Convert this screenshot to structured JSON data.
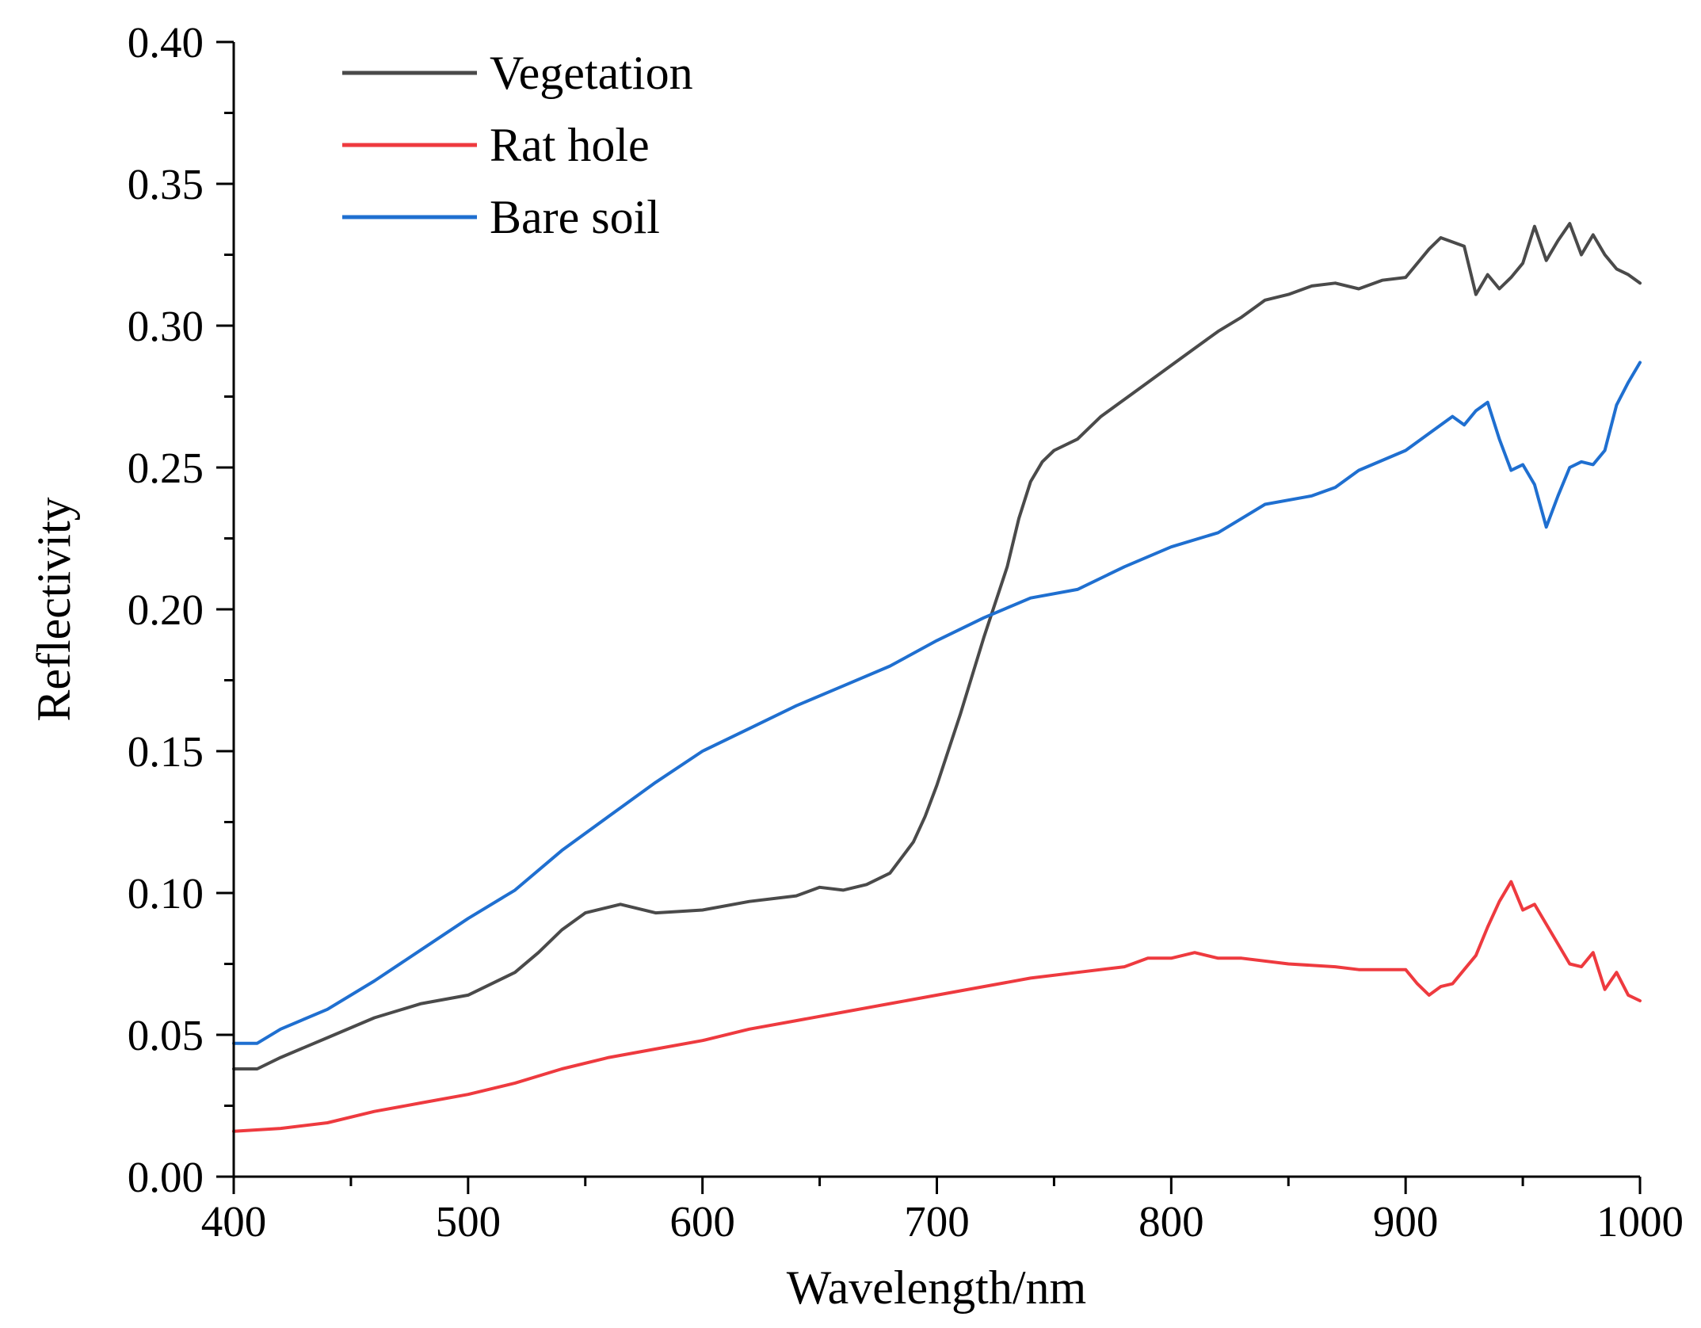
{
  "chart_data": {
    "type": "line",
    "title": "",
    "xlabel": "Wavelength/nm",
    "ylabel": "Reflectivity",
    "xlim": [
      400,
      1000
    ],
    "ylim": [
      0,
      0.4
    ],
    "x_ticks": [
      "400",
      "500",
      "600",
      "700",
      "800",
      "900",
      "1000"
    ],
    "y_ticks": [
      "0.00",
      "0.05",
      "0.10",
      "0.15",
      "0.20",
      "0.25",
      "0.30",
      "0.35",
      "0.40"
    ],
    "grid": false,
    "legend_position": "top-left",
    "series": [
      {
        "name": "Vegetation",
        "color": "#4a4a4a",
        "x": [
          400,
          410,
          420,
          440,
          460,
          480,
          500,
          520,
          530,
          540,
          550,
          565,
          580,
          600,
          620,
          640,
          650,
          660,
          670,
          680,
          690,
          695,
          700,
          710,
          720,
          730,
          735,
          740,
          745,
          750,
          760,
          770,
          780,
          790,
          800,
          810,
          820,
          830,
          840,
          850,
          860,
          870,
          880,
          890,
          900,
          910,
          915,
          925,
          930,
          935,
          940,
          945,
          950,
          955,
          960,
          965,
          970,
          975,
          980,
          985,
          990,
          995,
          1000
        ],
        "y": [
          0.038,
          0.038,
          0.042,
          0.049,
          0.056,
          0.061,
          0.064,
          0.072,
          0.079,
          0.087,
          0.093,
          0.096,
          0.093,
          0.094,
          0.097,
          0.099,
          0.102,
          0.101,
          0.103,
          0.107,
          0.118,
          0.127,
          0.138,
          0.163,
          0.19,
          0.215,
          0.232,
          0.245,
          0.252,
          0.256,
          0.26,
          0.268,
          0.274,
          0.28,
          0.286,
          0.292,
          0.298,
          0.303,
          0.309,
          0.311,
          0.314,
          0.315,
          0.313,
          0.316,
          0.317,
          0.327,
          0.331,
          0.328,
          0.311,
          0.318,
          0.313,
          0.317,
          0.322,
          0.335,
          0.323,
          0.33,
          0.336,
          0.325,
          0.332,
          0.325,
          0.32,
          0.318,
          0.315
        ]
      },
      {
        "name": "Rat hole",
        "color": "#ee3a3f",
        "x": [
          400,
          420,
          440,
          460,
          480,
          500,
          520,
          540,
          560,
          580,
          600,
          620,
          640,
          660,
          680,
          700,
          720,
          740,
          760,
          780,
          790,
          800,
          810,
          820,
          830,
          850,
          870,
          880,
          890,
          900,
          905,
          910,
          915,
          920,
          925,
          930,
          935,
          940,
          945,
          950,
          955,
          960,
          965,
          970,
          975,
          980,
          985,
          990,
          995,
          1000
        ],
        "y": [
          0.016,
          0.017,
          0.019,
          0.023,
          0.026,
          0.029,
          0.033,
          0.038,
          0.042,
          0.045,
          0.048,
          0.052,
          0.055,
          0.058,
          0.061,
          0.064,
          0.067,
          0.07,
          0.072,
          0.074,
          0.077,
          0.077,
          0.079,
          0.077,
          0.077,
          0.075,
          0.074,
          0.073,
          0.073,
          0.073,
          0.068,
          0.064,
          0.067,
          0.068,
          0.073,
          0.078,
          0.088,
          0.097,
          0.104,
          0.094,
          0.096,
          0.089,
          0.082,
          0.075,
          0.074,
          0.079,
          0.066,
          0.072,
          0.064,
          0.062
        ]
      },
      {
        "name": "Bare soil",
        "color": "#1f6fd0",
        "x": [
          400,
          410,
          420,
          440,
          460,
          480,
          500,
          520,
          540,
          560,
          580,
          600,
          620,
          640,
          660,
          680,
          700,
          720,
          740,
          760,
          780,
          800,
          820,
          840,
          860,
          870,
          880,
          900,
          910,
          920,
          925,
          930,
          935,
          940,
          945,
          950,
          955,
          960,
          965,
          970,
          975,
          980,
          985,
          990,
          995,
          1000
        ],
        "y": [
          0.047,
          0.047,
          0.052,
          0.059,
          0.069,
          0.08,
          0.091,
          0.101,
          0.115,
          0.127,
          0.139,
          0.15,
          0.158,
          0.166,
          0.173,
          0.18,
          0.189,
          0.197,
          0.204,
          0.207,
          0.215,
          0.222,
          0.227,
          0.237,
          0.24,
          0.243,
          0.249,
          0.256,
          0.262,
          0.268,
          0.265,
          0.27,
          0.273,
          0.26,
          0.249,
          0.251,
          0.244,
          0.229,
          0.24,
          0.25,
          0.252,
          0.251,
          0.256,
          0.272,
          0.28,
          0.287
        ]
      }
    ]
  }
}
